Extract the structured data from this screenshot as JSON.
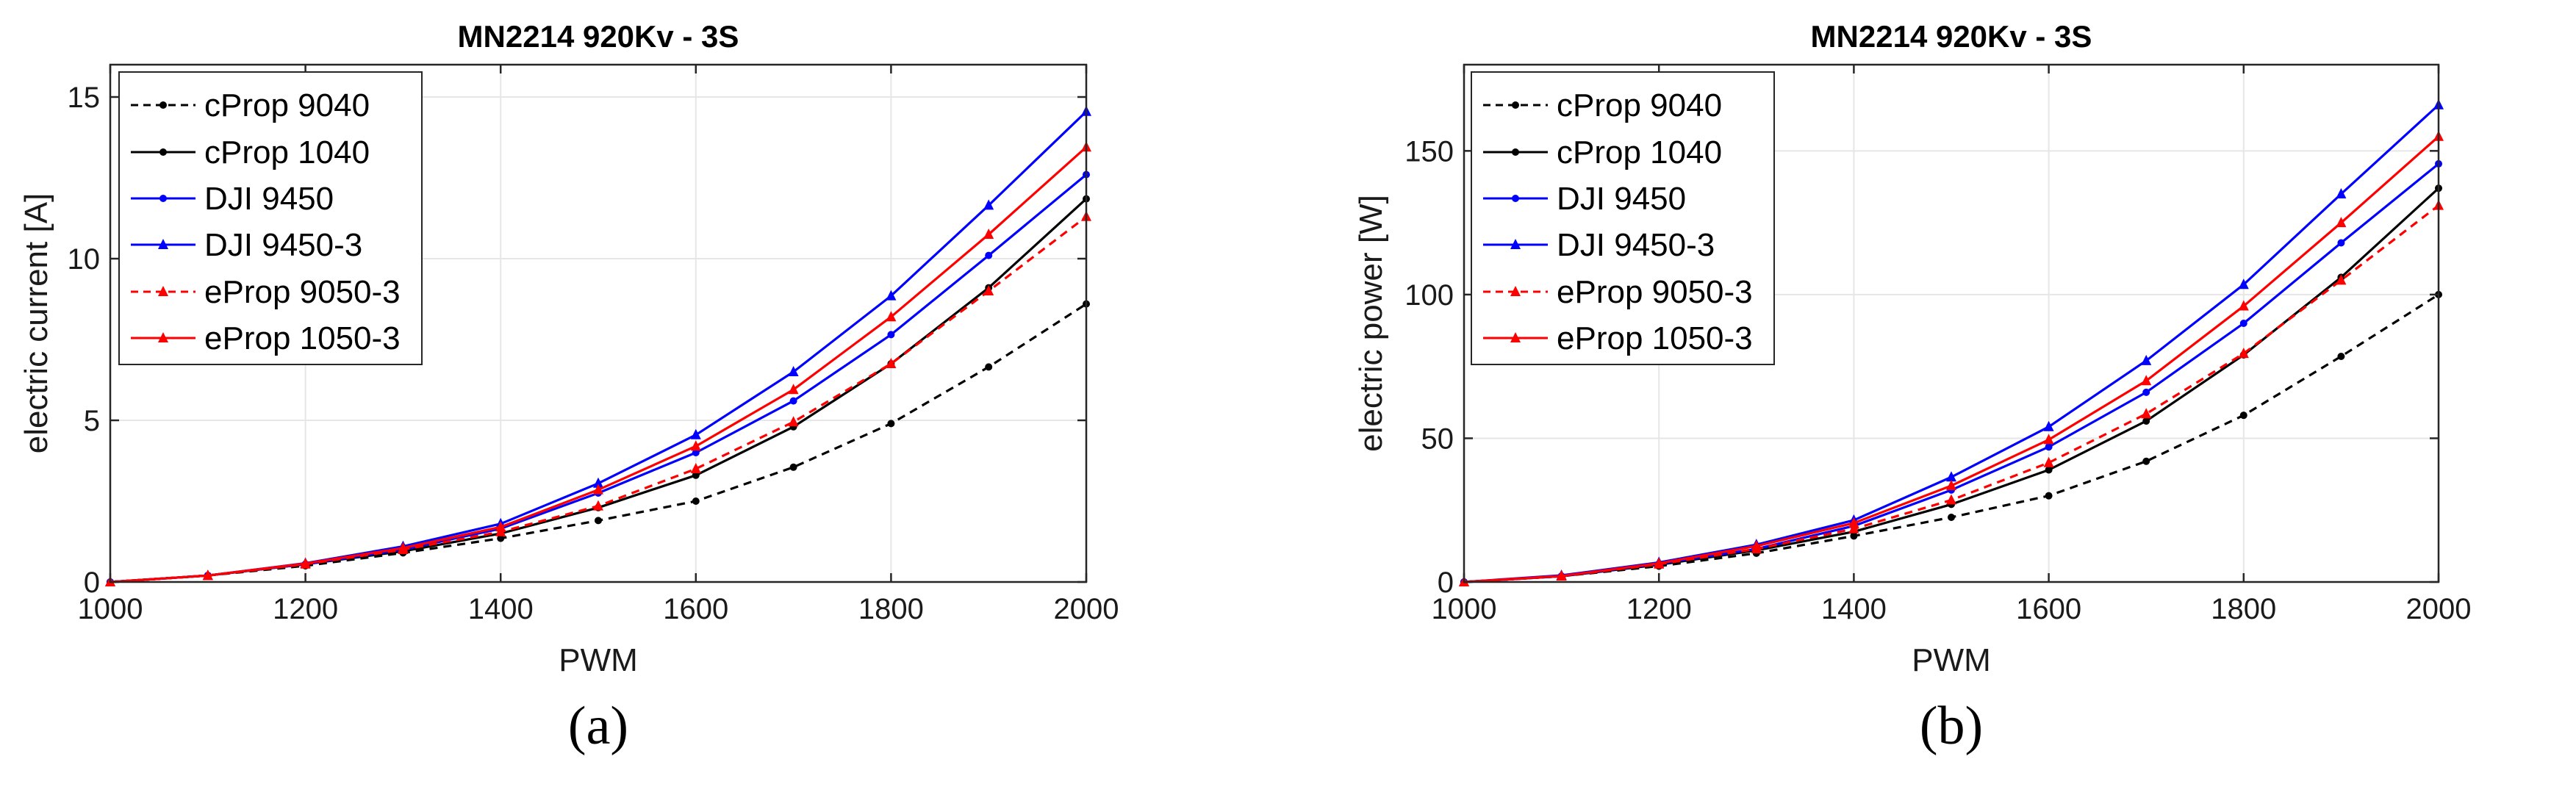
{
  "panel_labels": [
    "(a)",
    "(b)"
  ],
  "legend_entries": [
    "cProp 9040",
    "cProp 1040",
    "DJI 9450",
    "DJI 9450-3",
    "eProp 9050-3",
    "eProp 1050-3"
  ],
  "series_styles": [
    {
      "name": "cProp 9040",
      "color": "#000000",
      "dash": "dashed",
      "marker": "dot"
    },
    {
      "name": "cProp 1040",
      "color": "#000000",
      "dash": "solid",
      "marker": "dot"
    },
    {
      "name": "DJI 9450",
      "color": "#0000ff",
      "dash": "solid",
      "marker": "dot"
    },
    {
      "name": "DJI 9450-3",
      "color": "#0000ff",
      "dash": "solid",
      "marker": "triangle"
    },
    {
      "name": "eProp 9050-3",
      "color": "#ff0000",
      "dash": "dashed",
      "marker": "triangle"
    },
    {
      "name": "eProp 1050-3",
      "color": "#ff0000",
      "dash": "solid",
      "marker": "triangle"
    }
  ],
  "chart_data": [
    {
      "type": "line",
      "title": "MN2214 920Kv - 3S",
      "xlabel": "PWM",
      "ylabel": "electric  current [A]",
      "xlim": [
        1000,
        2000
      ],
      "ylim": [
        0,
        16
      ],
      "xticks": [
        1000,
        1200,
        1400,
        1600,
        1800,
        2000
      ],
      "yticks": [
        0,
        5,
        10,
        15
      ],
      "grid": true,
      "legend_position": "top-left",
      "x": [
        1000,
        1100,
        1200,
        1300,
        1400,
        1500,
        1600,
        1700,
        1800,
        1900,
        2000
      ],
      "series": [
        {
          "name": "cProp 9040",
          "values": [
            0,
            0.2,
            0.5,
            0.9,
            1.35,
            1.9,
            2.5,
            3.55,
            4.9,
            6.65,
            8.6
          ]
        },
        {
          "name": "cProp 1040",
          "values": [
            0,
            0.2,
            0.55,
            0.95,
            1.5,
            2.3,
            3.3,
            4.8,
            6.75,
            9.1,
            11.85
          ]
        },
        {
          "name": "DJI 9450",
          "values": [
            0,
            0.2,
            0.55,
            1.0,
            1.65,
            2.75,
            4.0,
            5.6,
            7.65,
            10.1,
            12.6
          ]
        },
        {
          "name": "DJI 9450-3",
          "values": [
            0,
            0.2,
            0.58,
            1.1,
            1.8,
            3.05,
            4.55,
            6.5,
            8.85,
            11.65,
            14.55
          ]
        },
        {
          "name": "eProp 9050-3",
          "values": [
            0,
            0.2,
            0.55,
            1.0,
            1.55,
            2.35,
            3.5,
            4.95,
            6.75,
            9.0,
            11.3
          ]
        },
        {
          "name": "eProp 1050-3",
          "values": [
            0,
            0.2,
            0.57,
            1.05,
            1.7,
            2.85,
            4.2,
            5.95,
            8.2,
            10.75,
            13.45
          ]
        }
      ]
    },
    {
      "type": "line",
      "title": "MN2214 920Kv - 3S",
      "xlabel": "PWM",
      "ylabel": "electric  power [W]",
      "xlim": [
        1000,
        2000
      ],
      "ylim": [
        0,
        180
      ],
      "xticks": [
        1000,
        1200,
        1400,
        1600,
        1800,
        2000
      ],
      "yticks": [
        0,
        50,
        100,
        150
      ],
      "grid": true,
      "legend_position": "top-left",
      "x": [
        1000,
        1100,
        1200,
        1300,
        1400,
        1500,
        1600,
        1700,
        1800,
        1900,
        2000
      ],
      "series": [
        {
          "name": "cProp 9040",
          "values": [
            0,
            2,
            5.5,
            10,
            16,
            22.5,
            30,
            42,
            58,
            78.5,
            100
          ]
        },
        {
          "name": "cProp 1040",
          "values": [
            0,
            2,
            6,
            11,
            17.5,
            27,
            39,
            56,
            79,
            106,
            137
          ]
        },
        {
          "name": "DJI 9450",
          "values": [
            0,
            2,
            6.3,
            11.5,
            19.5,
            32,
            47,
            66,
            90,
            118,
            145.5
          ]
        },
        {
          "name": "DJI 9450-3",
          "values": [
            0,
            2.3,
            6.8,
            13,
            21.5,
            36.5,
            54,
            77,
            103.5,
            135,
            166
          ]
        },
        {
          "name": "eProp 9050-3",
          "values": [
            0,
            2,
            6.2,
            11.5,
            18.5,
            28.5,
            41.5,
            58.5,
            79.5,
            105,
            131
          ]
        },
        {
          "name": "eProp 1050-3",
          "values": [
            0,
            2.1,
            6.5,
            12.5,
            20.5,
            33.5,
            49.5,
            70,
            96,
            125,
            155
          ]
        }
      ]
    }
  ]
}
